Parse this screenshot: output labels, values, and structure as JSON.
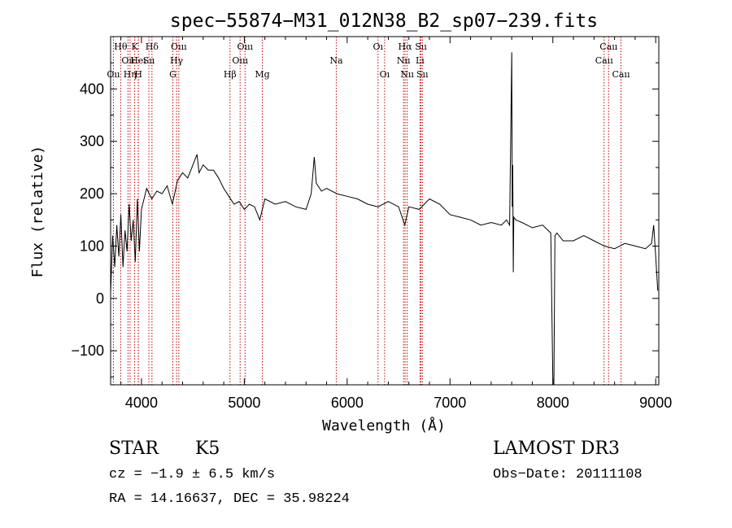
{
  "chart_data": {
    "type": "line",
    "title": "spec−55874−M31_012N38_B2_sp07−239.fits",
    "xlabel": "Wavelength (Å)",
    "ylabel": "Flux (relative)",
    "xlim": [
      3700,
      9030
    ],
    "ylim": [
      -165,
      500
    ],
    "x_ticks": [
      4000,
      5000,
      6000,
      7000,
      8000,
      9000
    ],
    "y_ticks": [
      -100,
      0,
      100,
      200,
      300,
      400
    ],
    "y_tick_labels": [
      "−100",
      "0",
      "100",
      "200",
      "300",
      "400"
    ],
    "grid": false,
    "series": [
      {
        "name": "flux",
        "x": [
          3700,
          3720,
          3740,
          3760,
          3780,
          3800,
          3820,
          3840,
          3860,
          3880,
          3900,
          3920,
          3940,
          3960,
          3980,
          4000,
          4050,
          4100,
          4150,
          4200,
          4250,
          4300,
          4350,
          4400,
          4450,
          4500,
          4540,
          4560,
          4600,
          4650,
          4700,
          4750,
          4800,
          4850,
          4900,
          4950,
          5000,
          5050,
          5100,
          5150,
          5200,
          5300,
          5400,
          5500,
          5600,
          5650,
          5680,
          5700,
          5750,
          5800,
          5900,
          6000,
          6100,
          6200,
          6300,
          6400,
          6500,
          6560,
          6600,
          6700,
          6800,
          6900,
          7000,
          7100,
          7200,
          7300,
          7400,
          7500,
          7550,
          7580,
          7600,
          7605,
          7610,
          7615,
          7620,
          7640,
          7700,
          7800,
          7900,
          7980,
          8000,
          8010,
          8020,
          8040,
          8100,
          8200,
          8300,
          8400,
          8500,
          8600,
          8700,
          8800,
          8900,
          8960,
          8980,
          9000,
          9020
        ],
        "y": [
          10,
          120,
          60,
          140,
          80,
          160,
          60,
          130,
          90,
          180,
          110,
          150,
          70,
          190,
          90,
          170,
          210,
          190,
          205,
          200,
          215,
          180,
          225,
          240,
          230,
          255,
          275,
          240,
          255,
          245,
          245,
          230,
          210,
          195,
          180,
          185,
          170,
          180,
          175,
          150,
          190,
          180,
          185,
          175,
          170,
          200,
          270,
          220,
          205,
          210,
          200,
          195,
          190,
          180,
          175,
          185,
          175,
          140,
          175,
          170,
          190,
          180,
          160,
          155,
          150,
          140,
          145,
          140,
          150,
          140,
          470,
          175,
          255,
          50,
          155,
          150,
          145,
          135,
          140,
          125,
          -165,
          -165,
          120,
          125,
          110,
          110,
          120,
          110,
          100,
          95,
          105,
          100,
          95,
          105,
          140,
          80,
          15
        ]
      }
    ],
    "emission_lines": [
      {
        "label": "Oıı",
        "x": 3727,
        "row": 2
      },
      {
        "label": "Hθ",
        "x": 3798,
        "row": 0
      },
      {
        "label": "Oıı",
        "x": 3869,
        "row": 1
      },
      {
        "label": "Hη",
        "x": 3889,
        "row": 2
      },
      {
        "label": "K",
        "x": 3934,
        "row": 0
      },
      {
        "label": "Heı",
        "x": 3969,
        "row": 1
      },
      {
        "label": "H",
        "x": 3970,
        "row": 2
      },
      {
        "label": "Hδ",
        "x": 4102,
        "row": 0
      },
      {
        "label": "Sıı",
        "x": 4072,
        "row": 1
      },
      {
        "label": "Oııı",
        "x": 4363,
        "row": 0
      },
      {
        "label": "Hγ",
        "x": 4341,
        "row": 1
      },
      {
        "label": "G",
        "x": 4305,
        "row": 2
      },
      {
        "label": "Hβ",
        "x": 4861,
        "row": 2
      },
      {
        "label": "Oııı",
        "x": 5007,
        "row": 0
      },
      {
        "label": "Oııı",
        "x": 4959,
        "row": 1
      },
      {
        "label": "Mg",
        "x": 5175,
        "row": 2
      },
      {
        "label": "Na",
        "x": 5894,
        "row": 1
      },
      {
        "label": "Oı",
        "x": 6300,
        "row": 0
      },
      {
        "label": "Oı",
        "x": 6364,
        "row": 2
      },
      {
        "label": "Hα",
        "x": 6563,
        "row": 0
      },
      {
        "label": "Nıı",
        "x": 6548,
        "row": 1
      },
      {
        "label": "Nıı",
        "x": 6583,
        "row": 2
      },
      {
        "label": "Sıı",
        "x": 6717,
        "row": 0
      },
      {
        "label": "Lı",
        "x": 6708,
        "row": 1
      },
      {
        "label": "Sıı",
        "x": 6731,
        "row": 2
      },
      {
        "label": "Caıı",
        "x": 8542,
        "row": 0
      },
      {
        "label": "Caıı",
        "x": 8498,
        "row": 1
      },
      {
        "label": "Caıı",
        "x": 8662,
        "row": 2
      }
    ]
  },
  "info": {
    "class": "STAR",
    "subclass": "K5",
    "survey": "LAMOST DR3",
    "cz": "cz = −1.9 ± 6.5 km/s",
    "obs_date": "Obs−Date: 20111108",
    "radec": "RA =  14.16637, DEC =  35.98224"
  }
}
